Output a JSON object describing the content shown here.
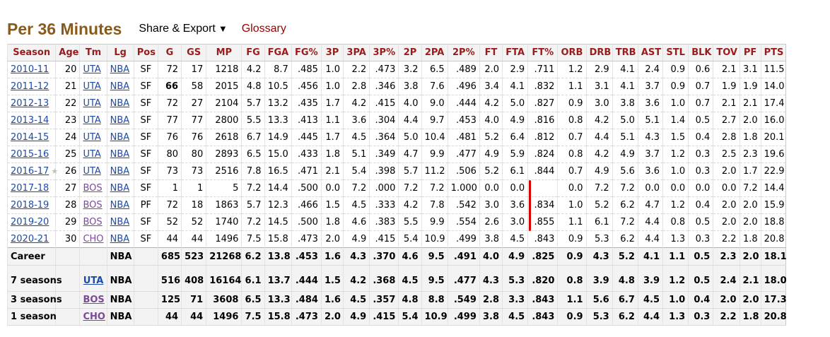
{
  "header": {
    "title": "Per 36 Minutes",
    "share_label": "Share & Export",
    "share_caret": "▼",
    "glossary_label": "Glossary"
  },
  "table": {
    "columns": [
      "Season",
      "Age",
      "Tm",
      "Lg",
      "Pos",
      "G",
      "GS",
      "MP",
      "FG",
      "FGA",
      "FG%",
      "3P",
      "3PA",
      "3P%",
      "2P",
      "2PA",
      "2P%",
      "FT",
      "FTA",
      "FT%",
      "ORB",
      "DRB",
      "TRB",
      "AST",
      "STL",
      "BLK",
      "TOV",
      "PF",
      "PTS"
    ],
    "rows": [
      {
        "season": "2010-11",
        "age": "20",
        "tm": "UTA",
        "lg": "NBA",
        "pos": "SF",
        "g": "72",
        "gs": "17",
        "mp": "1218",
        "fg": "4.2",
        "fga": "8.7",
        "fgp": ".485",
        "p3": "1.0",
        "p3a": "2.2",
        "p3p": ".473",
        "p2": "3.2",
        "p2a": "6.5",
        "p2p": ".489",
        "ft": "2.0",
        "fta": "2.9",
        "ftp": ".711",
        "orb": "1.2",
        "drb": "2.9",
        "trb": "4.1",
        "ast": "2.4",
        "stl": "0.9",
        "blk": "0.6",
        "tov": "2.1",
        "pf": "3.1",
        "pts": "11.5"
      },
      {
        "season": "2011-12",
        "age": "21",
        "tm": "UTA",
        "lg": "NBA",
        "pos": "SF",
        "g": "66",
        "gs": "58",
        "mp": "2015",
        "fg": "4.8",
        "fga": "10.5",
        "fgp": ".456",
        "p3": "1.0",
        "p3a": "2.8",
        "p3p": ".346",
        "p2": "3.8",
        "p2a": "7.6",
        "p2p": ".496",
        "ft": "3.4",
        "fta": "4.1",
        "ftp": ".832",
        "orb": "1.1",
        "drb": "3.1",
        "trb": "4.1",
        "ast": "3.7",
        "stl": "0.9",
        "blk": "0.7",
        "tov": "1.9",
        "pf": "1.9",
        "pts": "14.0"
      },
      {
        "season": "2012-13",
        "age": "22",
        "tm": "UTA",
        "lg": "NBA",
        "pos": "SF",
        "g": "72",
        "gs": "27",
        "mp": "2104",
        "fg": "5.7",
        "fga": "13.2",
        "fgp": ".435",
        "p3": "1.7",
        "p3a": "4.2",
        "p3p": ".415",
        "p2": "4.0",
        "p2a": "9.0",
        "p2p": ".444",
        "ft": "4.2",
        "fta": "5.0",
        "ftp": ".827",
        "orb": "0.9",
        "drb": "3.0",
        "trb": "3.8",
        "ast": "3.6",
        "stl": "1.0",
        "blk": "0.7",
        "tov": "2.1",
        "pf": "2.1",
        "pts": "17.4"
      },
      {
        "season": "2013-14",
        "age": "23",
        "tm": "UTA",
        "lg": "NBA",
        "pos": "SF",
        "g": "77",
        "gs": "77",
        "mp": "2800",
        "fg": "5.5",
        "fga": "13.3",
        "fgp": ".413",
        "p3": "1.1",
        "p3a": "3.6",
        "p3p": ".304",
        "p2": "4.4",
        "p2a": "9.7",
        "p2p": ".453",
        "ft": "4.0",
        "fta": "4.9",
        "ftp": ".816",
        "orb": "0.8",
        "drb": "4.2",
        "trb": "5.0",
        "ast": "5.1",
        "stl": "1.4",
        "blk": "0.5",
        "tov": "2.7",
        "pf": "2.0",
        "pts": "16.0"
      },
      {
        "season": "2014-15",
        "age": "24",
        "tm": "UTA",
        "lg": "NBA",
        "pos": "SF",
        "g": "76",
        "gs": "76",
        "mp": "2618",
        "fg": "6.7",
        "fga": "14.9",
        "fgp": ".445",
        "p3": "1.7",
        "p3a": "4.5",
        "p3p": ".364",
        "p2": "5.0",
        "p2a": "10.4",
        "p2p": ".481",
        "ft": "5.2",
        "fta": "6.4",
        "ftp": ".812",
        "orb": "0.7",
        "drb": "4.4",
        "trb": "5.1",
        "ast": "4.3",
        "stl": "1.5",
        "blk": "0.4",
        "tov": "2.8",
        "pf": "1.8",
        "pts": "20.1"
      },
      {
        "season": "2015-16",
        "age": "25",
        "tm": "UTA",
        "lg": "NBA",
        "pos": "SF",
        "g": "80",
        "gs": "80",
        "mp": "2893",
        "fg": "6.5",
        "fga": "15.0",
        "fgp": ".433",
        "p3": "1.8",
        "p3a": "5.1",
        "p3p": ".349",
        "p2": "4.7",
        "p2a": "9.9",
        "p2p": ".477",
        "ft": "4.9",
        "fta": "5.9",
        "ftp": ".824",
        "orb": "0.8",
        "drb": "4.2",
        "trb": "4.9",
        "ast": "3.7",
        "stl": "1.2",
        "blk": "0.3",
        "tov": "2.5",
        "pf": "2.3",
        "pts": "19.6"
      },
      {
        "season": "2016-17",
        "star": "★",
        "age": "26",
        "tm": "UTA",
        "lg": "NBA",
        "pos": "SF",
        "g": "73",
        "gs": "73",
        "mp": "2516",
        "fg": "7.8",
        "fga": "16.5",
        "fgp": ".471",
        "p3": "2.1",
        "p3a": "5.4",
        "p3p": ".398",
        "p2": "5.7",
        "p2a": "11.2",
        "p2p": ".506",
        "ft": "5.2",
        "fta": "6.1",
        "ftp": ".844",
        "orb": "0.7",
        "drb": "4.9",
        "trb": "5.6",
        "ast": "3.6",
        "stl": "1.0",
        "blk": "0.3",
        "tov": "2.0",
        "pf": "1.7",
        "pts": "22.9"
      },
      {
        "season": "2017-18",
        "age": "27",
        "tm": "BOS",
        "lg": "NBA",
        "pos": "SF",
        "g": "1",
        "gs": "1",
        "mp": "5",
        "fg": "7.2",
        "fga": "14.4",
        "fgp": ".500",
        "p3": "0.0",
        "p3a": "7.2",
        "p3p": ".000",
        "p2": "7.2",
        "p2a": "7.2",
        "p2p": "1.000",
        "ft": "0.0",
        "fta": "0.0",
        "ftp": "",
        "orb": "0.0",
        "drb": "7.2",
        "trb": "7.2",
        "ast": "0.0",
        "stl": "0.0",
        "blk": "0.0",
        "tov": "0.0",
        "pf": "7.2",
        "pts": "14.4"
      },
      {
        "season": "2018-19",
        "age": "28",
        "tm": "BOS",
        "lg": "NBA",
        "pos": "PF",
        "g": "72",
        "gs": "18",
        "mp": "1863",
        "fg": "5.7",
        "fga": "12.3",
        "fgp": ".466",
        "p3": "1.5",
        "p3a": "4.5",
        "p3p": ".333",
        "p2": "4.2",
        "p2a": "7.8",
        "p2p": ".542",
        "ft": "3.0",
        "fta": "3.6",
        "ftp": ".834",
        "orb": "1.0",
        "drb": "5.2",
        "trb": "6.2",
        "ast": "4.7",
        "stl": "1.2",
        "blk": "0.4",
        "tov": "2.0",
        "pf": "2.0",
        "pts": "15.9"
      },
      {
        "season": "2019-20",
        "age": "29",
        "tm": "BOS",
        "lg": "NBA",
        "pos": "SF",
        "g": "52",
        "gs": "52",
        "mp": "1740",
        "fg": "7.2",
        "fga": "14.5",
        "fgp": ".500",
        "p3": "1.8",
        "p3a": "4.6",
        "p3p": ".383",
        "p2": "5.5",
        "p2a": "9.9",
        "p2p": ".554",
        "ft": "2.6",
        "fta": "3.0",
        "ftp": ".855",
        "orb": "1.1",
        "drb": "6.1",
        "trb": "7.2",
        "ast": "4.4",
        "stl": "0.8",
        "blk": "0.5",
        "tov": "2.0",
        "pf": "2.0",
        "pts": "18.8"
      },
      {
        "season": "2020-21",
        "age": "30",
        "tm": "CHO",
        "lg": "NBA",
        "pos": "SF",
        "g": "44",
        "gs": "44",
        "mp": "1496",
        "fg": "7.5",
        "fga": "15.8",
        "fgp": ".473",
        "p3": "2.0",
        "p3a": "4.9",
        "p3p": ".415",
        "p2": "5.4",
        "p2a": "10.9",
        "p2p": ".499",
        "ft": "3.8",
        "fta": "4.5",
        "ftp": ".843",
        "orb": "0.9",
        "drb": "5.3",
        "trb": "6.2",
        "ast": "4.4",
        "stl": "1.3",
        "blk": "0.3",
        "tov": "2.2",
        "pf": "1.8",
        "pts": "20.8"
      }
    ],
    "summary": [
      {
        "season": "Career",
        "tm": "",
        "lg": "NBA",
        "g": "685",
        "gs": "523",
        "mp": "21268",
        "fg": "6.2",
        "fga": "13.8",
        "fgp": ".453",
        "p3": "1.6",
        "p3a": "4.3",
        "p3p": ".370",
        "p2": "4.6",
        "p2a": "9.5",
        "p2p": ".491",
        "ft": "4.0",
        "fta": "4.9",
        "ftp": ".825",
        "orb": "0.9",
        "drb": "4.3",
        "trb": "5.2",
        "ast": "4.1",
        "stl": "1.1",
        "blk": "0.5",
        "tov": "2.3",
        "pf": "2.0",
        "pts": "18.1"
      },
      {
        "season": "7 seasons",
        "tm": "UTA",
        "lg": "NBA",
        "g": "516",
        "gs": "408",
        "mp": "16164",
        "fg": "6.1",
        "fga": "13.7",
        "fgp": ".444",
        "p3": "1.5",
        "p3a": "4.2",
        "p3p": ".368",
        "p2": "4.5",
        "p2a": "9.5",
        "p2p": ".477",
        "ft": "4.3",
        "fta": "5.3",
        "ftp": ".820",
        "orb": "0.8",
        "drb": "3.9",
        "trb": "4.8",
        "ast": "3.9",
        "stl": "1.2",
        "blk": "0.5",
        "tov": "2.4",
        "pf": "2.1",
        "pts": "18.0"
      },
      {
        "season": "3 seasons",
        "tm": "BOS",
        "lg": "NBA",
        "g": "125",
        "gs": "71",
        "mp": "3608",
        "fg": "6.5",
        "fga": "13.3",
        "fgp": ".484",
        "p3": "1.6",
        "p3a": "4.5",
        "p3p": ".357",
        "p2": "4.8",
        "p2a": "8.8",
        "p2p": ".549",
        "ft": "2.8",
        "fta": "3.3",
        "ftp": ".843",
        "orb": "1.1",
        "drb": "5.6",
        "trb": "6.7",
        "ast": "4.5",
        "stl": "1.0",
        "blk": "0.4",
        "tov": "2.0",
        "pf": "2.0",
        "pts": "17.3"
      },
      {
        "season": "1 season",
        "tm": "CHO",
        "lg": "NBA",
        "g": "44",
        "gs": "44",
        "mp": "1496",
        "fg": "7.5",
        "fga": "15.8",
        "fgp": ".473",
        "p3": "2.0",
        "p3a": "4.9",
        "p3p": ".415",
        "p2": "5.4",
        "p2a": "10.9",
        "p2p": ".499",
        "ft": "3.8",
        "fta": "4.5",
        "ftp": ".843",
        "orb": "0.9",
        "drb": "5.3",
        "trb": "6.2",
        "ast": "4.4",
        "stl": "1.3",
        "blk": "0.3",
        "tov": "2.2",
        "pf": "1.8",
        "pts": "20.8"
      }
    ]
  },
  "colors": {
    "title": "#8a5a1c",
    "header_text": "#9a1b1b",
    "link": "#1d4aa8",
    "visited_link": "#7a4a9a",
    "annotation": "#dd0000"
  }
}
